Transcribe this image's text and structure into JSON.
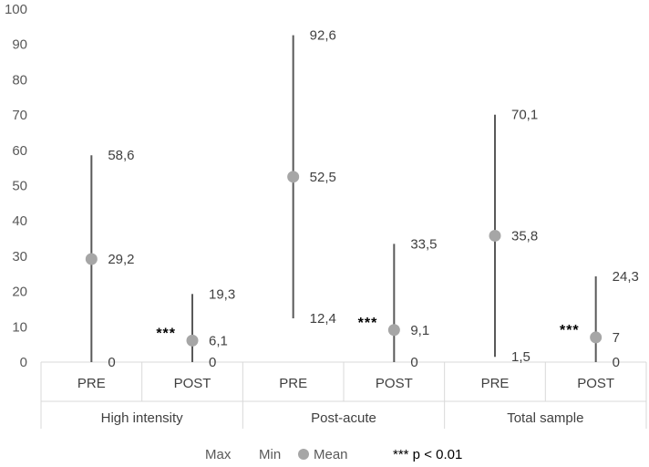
{
  "chart_data": {
    "type": "high-low-mean",
    "ylim": [
      0,
      100
    ],
    "yticks": [
      "0",
      "10",
      "20",
      "30",
      "40",
      "50",
      "60",
      "70",
      "80",
      "90",
      "100"
    ],
    "groups": [
      {
        "name": "High intensity",
        "points": [
          {
            "label": "PRE",
            "max": 58.6,
            "min": 0,
            "mean": 29.2,
            "max_label": "58,6",
            "min_label": "0",
            "mean_label": "29,2",
            "sig": ""
          },
          {
            "label": "POST",
            "max": 19.3,
            "min": 0,
            "mean": 6.1,
            "max_label": "19,3",
            "min_label": "0",
            "mean_label": "6,1",
            "sig": "***"
          }
        ]
      },
      {
        "name": "Post-acute",
        "points": [
          {
            "label": "PRE",
            "max": 92.6,
            "min": 12.4,
            "mean": 52.5,
            "max_label": "92,6",
            "min_label": "12,4",
            "mean_label": "52,5",
            "sig": ""
          },
          {
            "label": "POST",
            "max": 33.5,
            "min": 0,
            "mean": 9.1,
            "max_label": "33,5",
            "min_label": "0",
            "mean_label": "9,1",
            "sig": "***"
          }
        ]
      },
      {
        "name": "Total sample",
        "points": [
          {
            "label": "PRE",
            "max": 70.1,
            "min": 1.5,
            "mean": 35.8,
            "max_label": "70,1",
            "min_label": "1,5",
            "mean_label": "35,8",
            "sig": ""
          },
          {
            "label": "POST",
            "max": 24.3,
            "min": 0,
            "mean": 7,
            "max_label": "24,3",
            "min_label": "0",
            "mean_label": "7",
            "sig": "***"
          }
        ]
      }
    ],
    "legend": {
      "max": "Max",
      "min": "Min",
      "mean": "Mean"
    },
    "note": "*** p < 0.01",
    "colors": {
      "line": "#595959",
      "marker": "#a6a6a6",
      "axis": "#d9d9d9",
      "text": "#404040"
    }
  }
}
